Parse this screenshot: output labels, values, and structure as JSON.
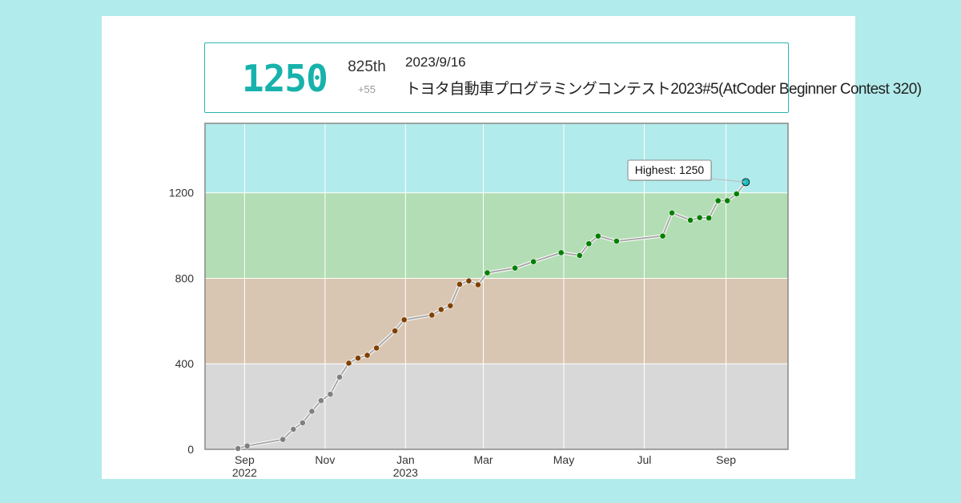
{
  "summary": {
    "rating": "1250",
    "rank": "825th",
    "rating_change": "+55",
    "contest_date": "2023/9/16",
    "contest_name": "トヨタ自動車プログラミングコンテスト2023#5(AtCoder Beginner Contest 320)"
  },
  "colors": {
    "background": "#b2ebeb",
    "accent": "#17b2ac",
    "band_gray": "#d8d8d8",
    "band_brown": "#d9c6b2",
    "band_green": "#b3ddb4",
    "band_cyan": "#b2ebeb",
    "point_gray": "#808080",
    "point_brown": "#804000",
    "point_green": "#008000",
    "point_cyan": "#19bdbd",
    "line": "#a8a8a8"
  },
  "chart_data": {
    "type": "line",
    "title": "",
    "xlabel": "",
    "ylabel": "",
    "ylim": [
      0,
      1525
    ],
    "xlim": [
      "2022-08-02",
      "2023-10-18"
    ],
    "y_ticks": [
      0,
      400,
      800,
      1200
    ],
    "x_ticks": [
      {
        "date": "2022-09-01",
        "label": "Sep",
        "year": "2022"
      },
      {
        "date": "2022-11-01",
        "label": "Nov",
        "year": ""
      },
      {
        "date": "2023-01-01",
        "label": "Jan",
        "year": "2023"
      },
      {
        "date": "2023-03-01",
        "label": "Mar",
        "year": ""
      },
      {
        "date": "2023-05-01",
        "label": "May",
        "year": ""
      },
      {
        "date": "2023-07-01",
        "label": "Jul",
        "year": ""
      },
      {
        "date": "2023-09-01",
        "label": "Sep",
        "year": ""
      }
    ],
    "bands": [
      {
        "from": 0,
        "to": 400,
        "color": "#d8d8d8"
      },
      {
        "from": 400,
        "to": 800,
        "color": "#d9c6b2"
      },
      {
        "from": 800,
        "to": 1200,
        "color": "#b3ddb4"
      },
      {
        "from": 1200,
        "to": 1525,
        "color": "#b2ebeb"
      }
    ],
    "series": [
      {
        "points": [
          [
            "2022-08-27",
            4
          ],
          [
            "2022-09-03",
            16
          ],
          [
            "2022-09-30",
            46
          ],
          [
            "2022-10-08",
            94
          ],
          [
            "2022-10-15",
            124
          ],
          [
            "2022-10-22",
            178
          ],
          [
            "2022-10-29",
            228
          ],
          [
            "2022-11-05",
            258
          ],
          [
            "2022-11-12",
            338
          ],
          [
            "2022-11-19",
            403
          ],
          [
            "2022-11-26",
            427
          ],
          [
            "2022-12-03",
            440
          ],
          [
            "2022-12-10",
            474
          ],
          [
            "2022-12-24",
            554
          ],
          [
            "2022-12-31",
            606
          ],
          [
            "2023-01-21",
            628
          ],
          [
            "2023-01-28",
            654
          ],
          [
            "2023-02-04",
            672
          ],
          [
            "2023-02-11",
            772
          ],
          [
            "2023-02-18",
            788
          ],
          [
            "2023-02-25",
            770
          ],
          [
            "2023-03-04",
            826
          ],
          [
            "2023-03-25",
            848
          ],
          [
            "2023-04-08",
            878
          ],
          [
            "2023-04-29",
            920
          ],
          [
            "2023-05-13",
            907
          ],
          [
            "2023-05-20",
            962
          ],
          [
            "2023-05-27",
            998
          ],
          [
            "2023-06-10",
            974
          ],
          [
            "2023-07-15",
            998
          ],
          [
            "2023-07-22",
            1106
          ],
          [
            "2023-08-05",
            1072
          ],
          [
            "2023-08-12",
            1084
          ],
          [
            "2023-08-19",
            1082
          ],
          [
            "2023-08-26",
            1163
          ],
          [
            "2023-09-02",
            1163
          ],
          [
            "2023-09-09",
            1195
          ],
          [
            "2023-09-16",
            1250
          ]
        ]
      }
    ],
    "annotation": {
      "label": "Highest: 1250",
      "date": "2023-09-16",
      "value": 1250
    }
  }
}
